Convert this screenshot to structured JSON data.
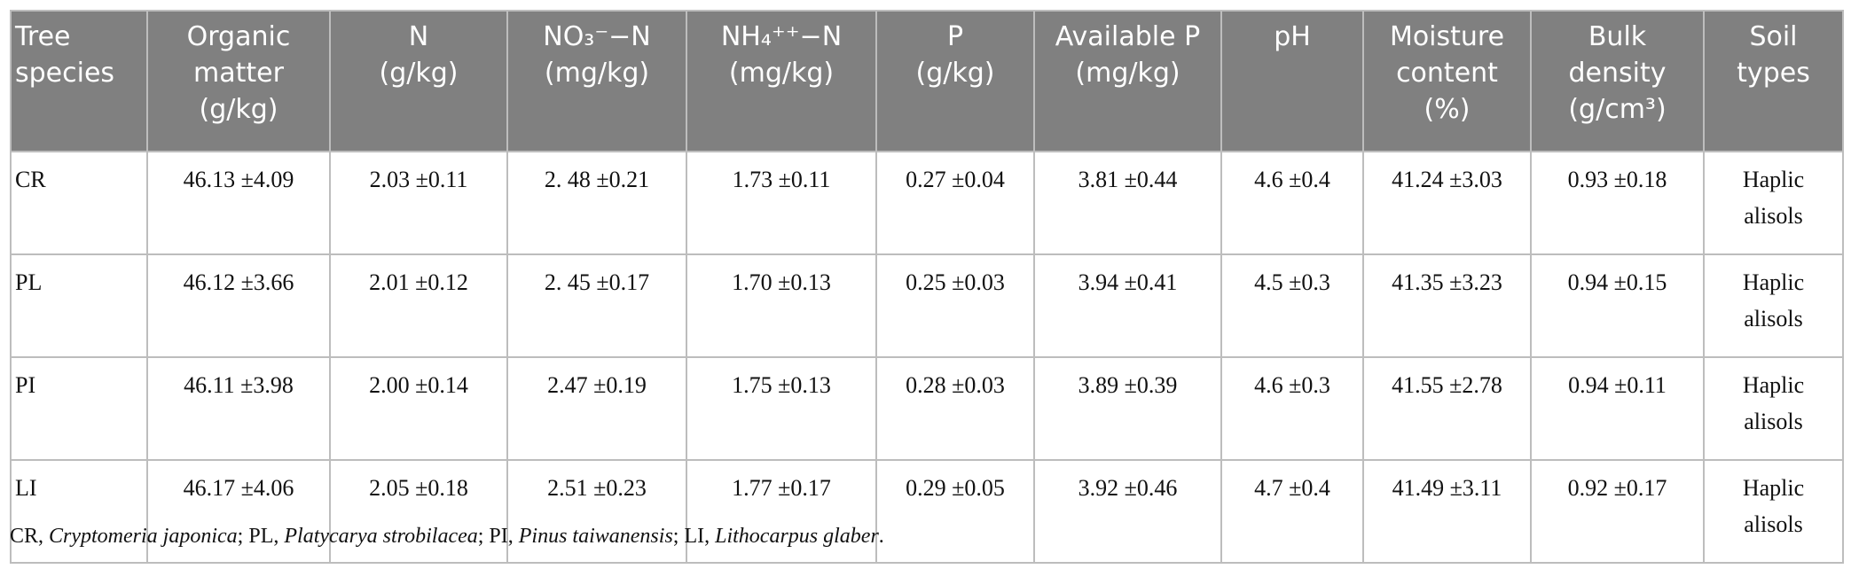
{
  "table": {
    "header": [
      [
        "Tree",
        "species"
      ],
      [
        "Organic",
        "matter",
        "(g/kg)"
      ],
      [
        "N",
        "(g/kg)"
      ],
      [
        "NO₃⁻−N",
        "(mg/kg)"
      ],
      [
        "NH₄⁺⁺−N",
        "(mg/kg)"
      ],
      [
        "P",
        "(g/kg)"
      ],
      [
        "Available P",
        "(mg/kg)"
      ],
      [
        "pH"
      ],
      [
        "Moisture",
        "content",
        "(%)"
      ],
      [
        "Bulk",
        "density",
        "(g/cm³)"
      ],
      [
        "Soil",
        "types"
      ]
    ],
    "rows": [
      [
        "CR",
        "46.13 ±4.09",
        "2.03 ±0.11",
        "2. 48 ±0.21",
        "1.73 ±0.11",
        "0.27 ±0.04",
        "3.81 ±0.44",
        "4.6 ±0.4",
        "41.24 ±3.03",
        "0.93 ±0.18",
        "Haplic alisols"
      ],
      [
        "PL",
        "46.12 ±3.66",
        "2.01 ±0.12",
        "2. 45 ±0.17",
        "1.70 ±0.13",
        "0.25 ±0.03",
        "3.94 ±0.41",
        "4.5 ±0.3",
        "41.35 ±3.23",
        "0.94 ±0.15",
        "Haplic alisols"
      ],
      [
        "PI",
        "46.11 ±3.98",
        "2.00 ±0.14",
        "2.47 ±0.19",
        "1.75 ±0.13",
        "0.28 ±0.03",
        "3.89 ±0.39",
        "4.6 ±0.3",
        "41.55 ±2.78",
        "0.94 ±0.11",
        "Haplic alisols"
      ],
      [
        "LI",
        "46.17 ±4.06",
        "2.05 ±0.18",
        "2.51 ±0.23",
        "1.77 ±0.17",
        "0.29 ±0.05",
        "3.92 ±0.46",
        "4.7 ±0.4",
        "41.49 ±3.11",
        "0.92 ±0.17",
        "Haplic alisols"
      ]
    ]
  },
  "footnote": [
    "CR, ",
    "Cryptomeria japonica",
    "; PL, ",
    "Platycarya strobilacea",
    "; PI, ",
    "Pinus taiwanensis",
    "; LI, ",
    "Lithocarpus glaber",
    "."
  ]
}
